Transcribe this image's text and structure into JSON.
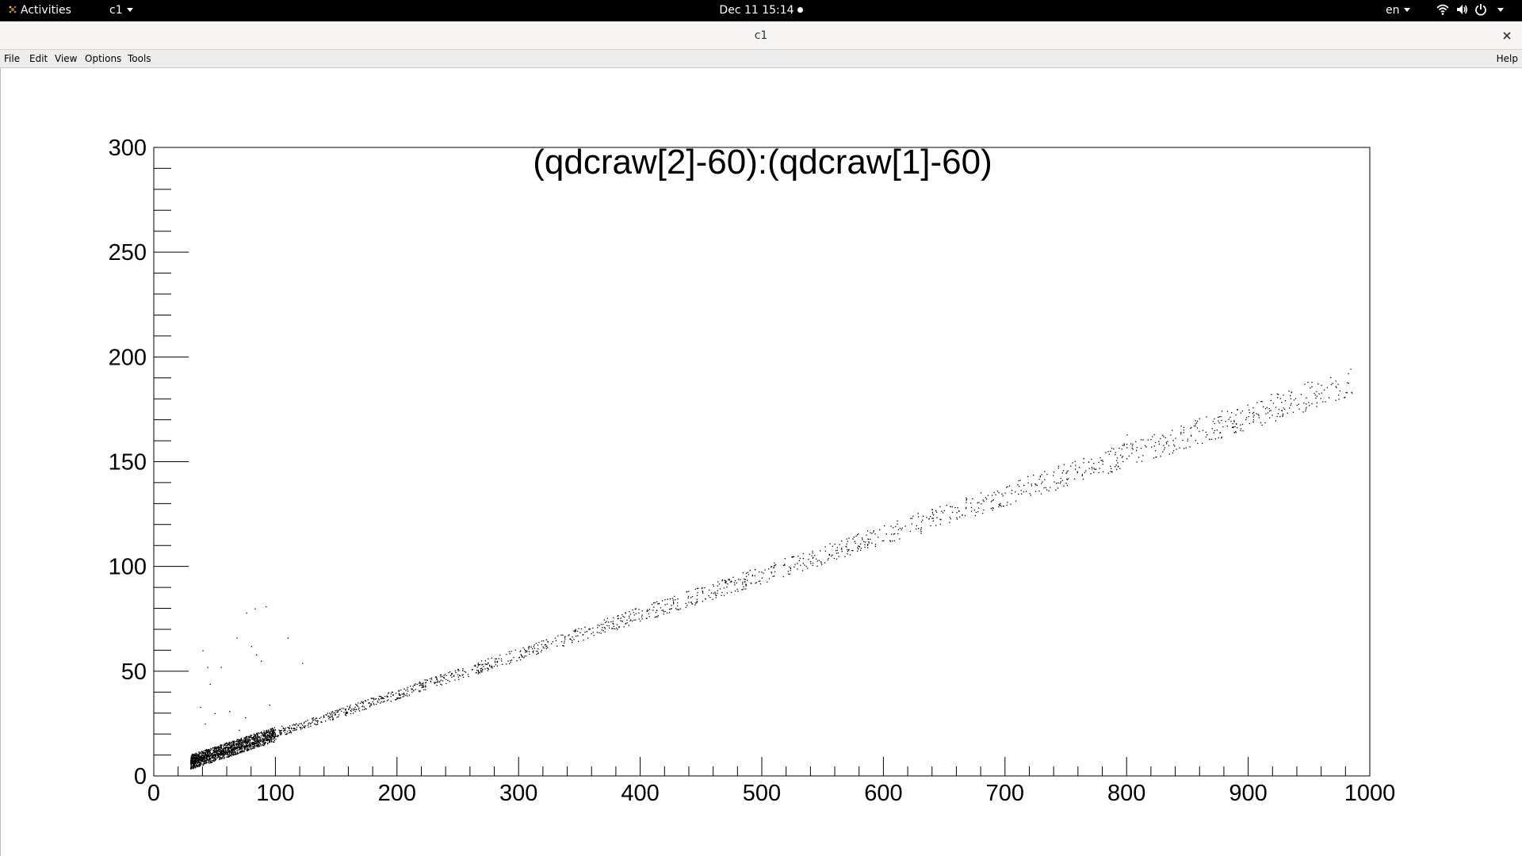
{
  "topbar": {
    "activities_label": "Activities",
    "app_menu_label": "c1",
    "clock": "Dec 11  15:14",
    "lang": "en",
    "icons": [
      "wifi-icon",
      "volume-icon",
      "power-icon",
      "chevron-down-icon"
    ]
  },
  "window": {
    "title": "c1",
    "close_icon": "close-icon"
  },
  "menubar": {
    "file": "File",
    "edit": "Edit",
    "view": "View",
    "options": "Options",
    "tools": "Tools",
    "help": "Help"
  },
  "chart_data": {
    "type": "scatter",
    "title": "(qdcraw[2]-60):(qdcraw[1]-60)",
    "xlabel": "",
    "ylabel": "",
    "xlim": [
      0,
      1000
    ],
    "ylim": [
      0,
      300
    ],
    "x_ticks": [
      0,
      100,
      200,
      300,
      400,
      500,
      600,
      700,
      800,
      900,
      1000
    ],
    "y_ticks": [
      0,
      50,
      100,
      150,
      200,
      250,
      300
    ],
    "grid": false,
    "legend": "none",
    "marker_color": "#000000",
    "trend": {
      "slope": 0.19,
      "intercept": 1.2,
      "x_range": [
        30,
        985
      ]
    },
    "dense_cluster": {
      "x_range": [
        30,
        100
      ],
      "y_range": [
        5,
        22
      ]
    },
    "outliers": [
      [
        68,
        66
      ],
      [
        76,
        78
      ],
      [
        83,
        80
      ],
      [
        92,
        81
      ],
      [
        80,
        62
      ],
      [
        84,
        58
      ],
      [
        88,
        55
      ],
      [
        110,
        66
      ],
      [
        122,
        54
      ],
      [
        40,
        60
      ],
      [
        44,
        52
      ],
      [
        55,
        52
      ],
      [
        38,
        33
      ],
      [
        42,
        25
      ],
      [
        50,
        30
      ],
      [
        62,
        31
      ],
      [
        75,
        28
      ],
      [
        95,
        34
      ],
      [
        46,
        44
      ],
      [
        70,
        22
      ],
      [
        105,
        24
      ]
    ],
    "sparse_upper_points": [
      [
        800,
        163
      ],
      [
        870,
        166
      ],
      [
        895,
        168
      ],
      [
        915,
        176
      ],
      [
        935,
        178
      ],
      [
        960,
        183
      ],
      [
        968,
        187
      ],
      [
        975,
        184
      ],
      [
        985,
        183
      ],
      [
        720,
        135
      ],
      [
        745,
        140
      ],
      [
        780,
        149
      ],
      [
        850,
        161
      ],
      [
        830,
        158
      ],
      [
        705,
        135
      ],
      [
        690,
        128
      ]
    ]
  }
}
